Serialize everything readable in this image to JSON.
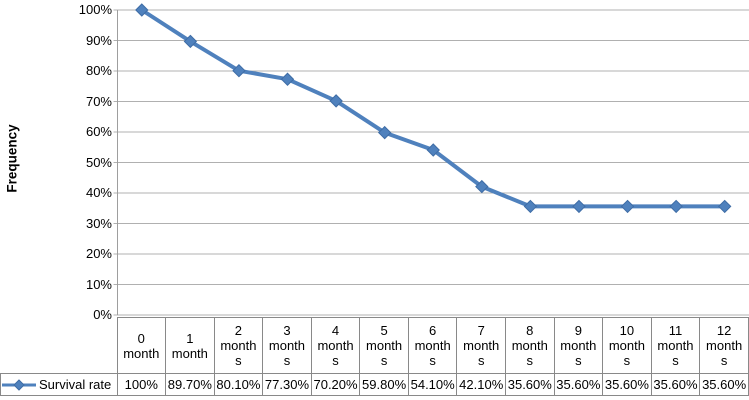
{
  "colors": {
    "line": "#4F81BD",
    "marker_stroke": "#3E6CA5",
    "gridline": "#B0B0B0",
    "axis_line": "#9E9E9E",
    "table_border": "#898989",
    "text": "#000000"
  },
  "chart_data": {
    "type": "line",
    "title": "",
    "xlabel": "",
    "ylabel": "Frequency",
    "ylim": [
      0,
      100
    ],
    "grid": "horizontal",
    "marker": "diamond",
    "legend_position": "table-left",
    "y_ticks": [
      "100%",
      "90%",
      "80%",
      "70%",
      "60%",
      "50%",
      "40%",
      "30%",
      "20%",
      "10%",
      "0%"
    ],
    "categories": [
      "0 month",
      "1 month",
      "2 months",
      "3 months",
      "4 months",
      "5 months",
      "6 months",
      "7 months",
      "8 months",
      "9 months",
      "10 months",
      "11 months",
      "12 months"
    ],
    "series": [
      {
        "name": "Survival rate",
        "values": [
          100,
          89.7,
          80.1,
          77.3,
          70.2,
          59.8,
          54.1,
          42.1,
          35.6,
          35.6,
          35.6,
          35.6,
          35.6
        ],
        "value_labels": [
          "100%",
          "89.70%",
          "80.10%",
          "77.30%",
          "70.20%",
          "59.80%",
          "54.10%",
          "42.10%",
          "35.60%",
          "35.60%",
          "35.60%",
          "35.60%",
          "35.60%"
        ]
      }
    ]
  }
}
